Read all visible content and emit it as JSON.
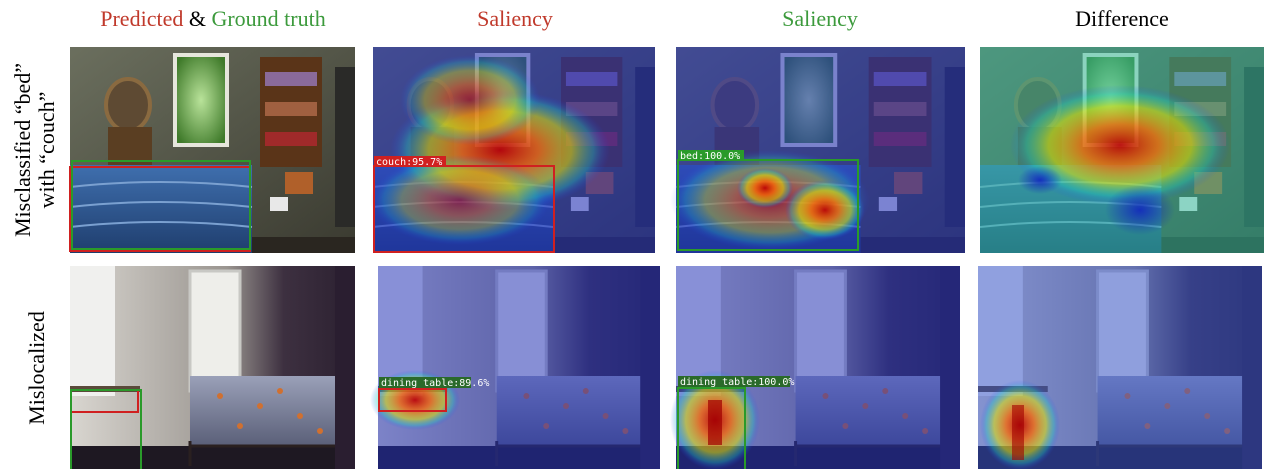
{
  "header": {
    "predicted": "Predicted",
    "and": "&",
    "ground_truth": "Ground truth",
    "saliency_predicted": "Saliency",
    "saliency_ground_truth": "Saliency",
    "difference": "Difference"
  },
  "rows": [
    {
      "label_lines": [
        "Misclassified “bed”",
        "with “couch”"
      ],
      "predicted_box_label": "couch:95.7%",
      "ground_truth_box_label": "bed:100.0%"
    },
    {
      "label_lines": [
        "Mislocalized"
      ],
      "predicted_box_label": "dining table:89.6%",
      "ground_truth_box_label": "dining table:100.0%"
    }
  ]
}
